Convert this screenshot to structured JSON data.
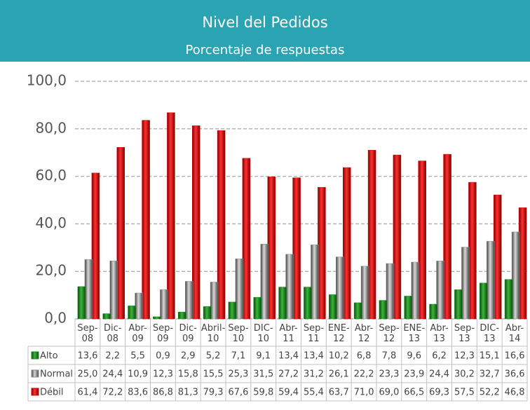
{
  "chart_data": {
    "type": "bar",
    "title": "Nivel del Pedidos",
    "subtitle": "Porcentaje de respuestas",
    "categories": [
      "Sep-08",
      "Dic-08",
      "Abr-09",
      "Sep-09",
      "Dic-09",
      "Abril-10",
      "Sep-10",
      "DIC-10",
      "Abr-11",
      "Sep-11",
      "ENE-12",
      "Abr-12",
      "Sep-12",
      "ENE-13",
      "Abr-13",
      "Sep-13",
      "DIC-13",
      "Abr-14"
    ],
    "series": [
      {
        "name": "Alto",
        "color": "#1e8a1e",
        "values": [
          13.6,
          2.2,
          5.5,
          0.9,
          2.9,
          5.2,
          7.1,
          9.1,
          13.4,
          13.4,
          10.2,
          6.8,
          7.8,
          9.6,
          6.2,
          12.3,
          15.1,
          16.6
        ],
        "value_labels": [
          "13,6",
          "2,2",
          "5,5",
          "0,9",
          "2,9",
          "5,2",
          "7,1",
          "9,1",
          "13,4",
          "13,4",
          "10,2",
          "6,8",
          "7,8",
          "9,6",
          "6,2",
          "12,3",
          "15,1",
          "16,6"
        ]
      },
      {
        "name": "Normal",
        "color": "#8c8c8c",
        "values": [
          25.0,
          24.4,
          10.9,
          12.3,
          15.8,
          15.5,
          25.3,
          31.5,
          27.2,
          31.2,
          26.1,
          22.2,
          23.3,
          23.9,
          24.4,
          30.2,
          32.7,
          36.6
        ],
        "value_labels": [
          "25,0",
          "24,4",
          "10,9",
          "12,3",
          "15,8",
          "15,5",
          "25,3",
          "31,5",
          "27,2",
          "31,2",
          "26,1",
          "22,2",
          "23,3",
          "23,9",
          "24,4",
          "30,2",
          "32,7",
          "36,6"
        ]
      },
      {
        "name": "Débil",
        "color": "#dd0000",
        "values": [
          61.4,
          72.2,
          83.6,
          86.8,
          81.3,
          79.3,
          67.6,
          59.8,
          59.4,
          55.4,
          63.7,
          71.0,
          69.0,
          66.5,
          69.3,
          57.5,
          52.2,
          46.8
        ],
        "value_labels": [
          "61,4",
          "72,2",
          "83,6",
          "86,8",
          "81,3",
          "79,3",
          "67,6",
          "59,8",
          "59,4",
          "55,4",
          "63,7",
          "71,0",
          "69,0",
          "66,5",
          "69,3",
          "57,5",
          "52,2",
          "46,8"
        ]
      }
    ],
    "ylim": [
      0,
      100
    ],
    "yticks": [
      {
        "value": 0,
        "label": "0,0"
      },
      {
        "value": 20,
        "label": "20,0"
      },
      {
        "value": 40,
        "label": "40,0"
      },
      {
        "value": 60,
        "label": "60,0"
      },
      {
        "value": 80,
        "label": "80,0"
      },
      {
        "value": 100,
        "label": "100,0"
      }
    ],
    "grid": true
  }
}
